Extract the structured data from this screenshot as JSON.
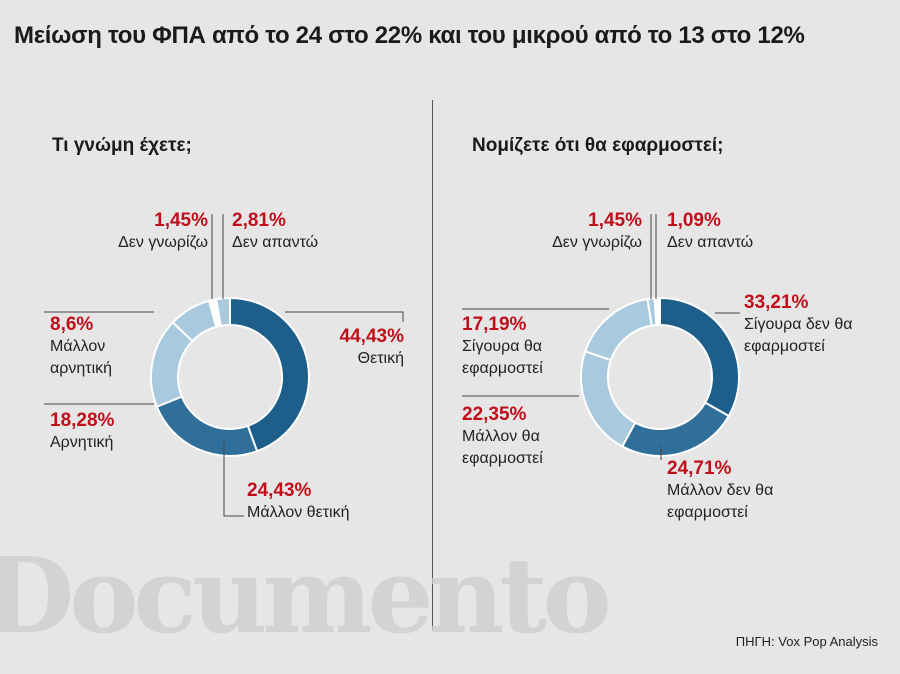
{
  "title": "Μείωση του ΦΠΑ από το 24 στο 22% και του μικρού από το 13 στο 12%",
  "watermark": "Documento",
  "source": "ΠΗΓΗ: Vox Pop Analysis",
  "colors": {
    "dark": "#1d5f8a",
    "medium": "#2f6f99",
    "light": "#a9c9de",
    "pale": "#c8dcea",
    "label_red": "#c00e1a"
  },
  "chart_data": [
    {
      "type": "pie",
      "title": "Τι γνώμη έχετε;",
      "hole": true,
      "slices": [
        {
          "label": "Θετική",
          "value": 44.43,
          "pct_text": "44,43%",
          "color": "#1d5f8a"
        },
        {
          "label": "Μάλλον θετική",
          "value": 24.43,
          "pct_text": "24,43%",
          "color": "#2f6f99"
        },
        {
          "label": "Αρνητική",
          "value": 18.28,
          "pct_text": "18,28%",
          "color": "#a9c9de"
        },
        {
          "label": "Μάλλον αρνητική",
          "value": 8.6,
          "pct_text": "8,6%",
          "color": "#a9c9de"
        },
        {
          "label": "Δεν γνωρίζω",
          "value": 1.45,
          "pct_text": "1,45%",
          "color": "#ffffff"
        },
        {
          "label": "Δεν απαντώ",
          "value": 2.81,
          "pct_text": "2,81%",
          "color": "#a9c9de"
        }
      ]
    },
    {
      "type": "pie",
      "title": "Νομίζετε ότι θα εφαρμοστεί;",
      "hole": true,
      "slices": [
        {
          "label": "Σίγουρα δεν θα εφαρμοστεί",
          "value": 33.21,
          "pct_text": "33,21%",
          "color": "#1d5f8a"
        },
        {
          "label": "Μάλλον δεν θα εφαρμοστεί",
          "value": 24.71,
          "pct_text": "24,71%",
          "color": "#2f6f99"
        },
        {
          "label": "Μάλλον θα εφαρμοστεί",
          "value": 22.35,
          "pct_text": "22,35%",
          "color": "#a9c9de"
        },
        {
          "label": "Σίγουρα θα εφαρμοστεί",
          "value": 17.19,
          "pct_text": "17,19%",
          "color": "#a9c9de"
        },
        {
          "label": "Δεν γνωρίζω",
          "value": 1.45,
          "pct_text": "1,45%",
          "color": "#a9c9de"
        },
        {
          "label": "Δεν απαντώ",
          "value": 1.09,
          "pct_text": "1,09%",
          "color": "#ffffff"
        }
      ]
    }
  ]
}
